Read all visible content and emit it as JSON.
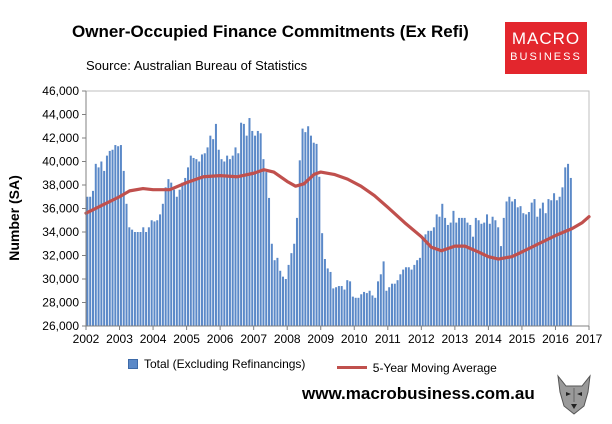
{
  "title": "Owner-Occupied Finance Commitments (Ex Refi)",
  "source": "Source: Australian  Bureau of Statistics",
  "logo": {
    "line1": "MACRO",
    "line2": "BUSINESS",
    "color": "#e3262d"
  },
  "website": "www.macrobusiness.com.au",
  "wolf_icon": "wolf-head-icon",
  "chart_data": {
    "type": "bar",
    "title": "Owner-Occupied Finance Commitments (Ex Refi)",
    "ylabel": "Number (SA)",
    "xlabel": "",
    "ylim": [
      26000,
      46000
    ],
    "xlim": [
      2002,
      2017
    ],
    "yticks": [
      26000,
      28000,
      30000,
      32000,
      34000,
      36000,
      38000,
      40000,
      42000,
      44000,
      46000
    ],
    "ytick_labels": [
      "26,000",
      "28,000",
      "30,000",
      "32,000",
      "34,000",
      "36,000",
      "38,000",
      "40,000",
      "42,000",
      "44,000",
      "46,000"
    ],
    "xticks": [
      "2002",
      "2003",
      "2004",
      "2005",
      "2006",
      "2007",
      "2008",
      "2009",
      "2010",
      "2011",
      "2012",
      "2013",
      "2014",
      "2015",
      "2016",
      "2017"
    ],
    "grid": false,
    "legend": "bottom",
    "frequency": "monthly",
    "start": "2002-01",
    "colors": {
      "bars": "#5b89c8",
      "bar_edge": "#3d6aa8",
      "moving_average": "#c0504d"
    },
    "series": [
      {
        "name": "Total (Excluding Refinancings)",
        "type": "bar",
        "values": [
          37000,
          37000,
          37500,
          39800,
          39500,
          40000,
          39200,
          40500,
          40900,
          41000,
          41400,
          41300,
          41400,
          39200,
          36400,
          34400,
          34200,
          34000,
          34000,
          34000,
          34400,
          34000,
          34400,
          35000,
          34900,
          35000,
          35500,
          36400,
          37800,
          38500,
          38200,
          37600,
          37000,
          37600,
          38200,
          38600,
          39500,
          40500,
          40300,
          40200,
          40000,
          40600,
          40700,
          41200,
          42200,
          41900,
          43200,
          41000,
          40200,
          40000,
          40500,
          40200,
          40500,
          41200,
          40700,
          43300,
          43200,
          42200,
          43700,
          42600,
          42200,
          42600,
          42400,
          40200,
          39100,
          36900,
          33000,
          31600,
          31800,
          30700,
          30200,
          30000,
          31200,
          32200,
          33000,
          35200,
          40100,
          42800,
          42500,
          43000,
          42200,
          41600,
          41500,
          38700,
          33900,
          31700,
          30900,
          30600,
          29200,
          29300,
          29400,
          29400,
          29100,
          29900,
          29800,
          28500,
          28400,
          28400,
          28700,
          28900,
          28800,
          29000,
          28600,
          28400,
          29800,
          30400,
          31500,
          29000,
          29300,
          29600,
          29600,
          29900,
          30400,
          30800,
          31000,
          31000,
          30800,
          31200,
          31600,
          31800,
          33500,
          33800,
          34100,
          34100,
          34400,
          35500,
          35300,
          36400,
          35200,
          34600,
          34800,
          35800,
          34800,
          35200,
          35200,
          35200,
          34800,
          34600,
          33600,
          35200,
          35000,
          34700,
          34800,
          35500,
          34700,
          35300,
          35000,
          34400,
          32800,
          35200,
          36600,
          37000,
          36600,
          36800,
          36100,
          36200,
          35600,
          35500,
          35700,
          36500,
          36800,
          35300,
          36000,
          36500,
          35600,
          36800,
          36700,
          37300,
          36700,
          37000,
          37800,
          39500,
          39800,
          38600
        ]
      },
      {
        "name": "5-Year Moving Average",
        "type": "line",
        "points": [
          [
            2002.0,
            35600
          ],
          [
            2002.5,
            36300
          ],
          [
            2003.0,
            37000
          ],
          [
            2003.3,
            37500
          ],
          [
            2003.7,
            37700
          ],
          [
            2004.0,
            37600
          ],
          [
            2004.5,
            37600
          ],
          [
            2005.0,
            38200
          ],
          [
            2005.5,
            38700
          ],
          [
            2006.0,
            38800
          ],
          [
            2006.5,
            38700
          ],
          [
            2007.0,
            39000
          ],
          [
            2007.3,
            39300
          ],
          [
            2007.6,
            39100
          ],
          [
            2008.0,
            38300
          ],
          [
            2008.25,
            37900
          ],
          [
            2008.5,
            38100
          ],
          [
            2008.8,
            38900
          ],
          [
            2009.0,
            39100
          ],
          [
            2009.4,
            38900
          ],
          [
            2009.8,
            38500
          ],
          [
            2010.2,
            37900
          ],
          [
            2010.6,
            37100
          ],
          [
            2011.0,
            36100
          ],
          [
            2011.5,
            34800
          ],
          [
            2012.0,
            33600
          ],
          [
            2012.3,
            32700
          ],
          [
            2012.6,
            32400
          ],
          [
            2013.0,
            32800
          ],
          [
            2013.3,
            32800
          ],
          [
            2013.7,
            32300
          ],
          [
            2014.0,
            31900
          ],
          [
            2014.3,
            31700
          ],
          [
            2014.7,
            31900
          ],
          [
            2015.0,
            32300
          ],
          [
            2015.5,
            33000
          ],
          [
            2016.0,
            33700
          ],
          [
            2016.5,
            34300
          ],
          [
            2016.8,
            34800
          ],
          [
            2017.0,
            35300
          ]
        ]
      }
    ]
  }
}
